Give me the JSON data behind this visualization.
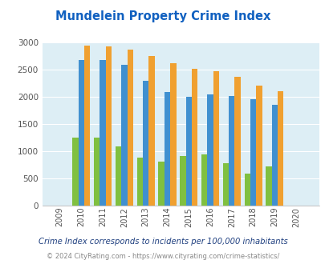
{
  "title": "Mundelein Property Crime Index",
  "years": [
    2009,
    2010,
    2011,
    2012,
    2013,
    2014,
    2015,
    2016,
    2017,
    2018,
    2019,
    2020
  ],
  "mundelein": [
    0,
    1250,
    1250,
    1090,
    890,
    810,
    920,
    950,
    780,
    590,
    720,
    0
  ],
  "illinois": [
    0,
    2670,
    2670,
    2590,
    2290,
    2090,
    2000,
    2050,
    2010,
    1950,
    1860,
    0
  ],
  "national": [
    0,
    2940,
    2920,
    2870,
    2750,
    2610,
    2510,
    2470,
    2360,
    2200,
    2100,
    0
  ],
  "mundelein_color": "#80c040",
  "illinois_color": "#4090d0",
  "national_color": "#f0a030",
  "bg_color": "#ddeef5",
  "ylim": [
    0,
    3000
  ],
  "yticks": [
    0,
    500,
    1000,
    1500,
    2000,
    2500,
    3000
  ],
  "footnote1": "Crime Index corresponds to incidents per 100,000 inhabitants",
  "footnote2": "© 2024 CityRating.com - https://www.cityrating.com/crime-statistics/",
  "title_color": "#1060c0",
  "footnote1_color": "#204080",
  "footnote2_color": "#888888"
}
